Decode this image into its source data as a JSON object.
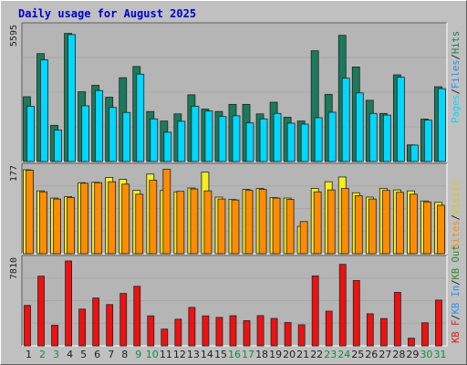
{
  "title": "Daily usage for August 2025",
  "colors": {
    "background": "#c0c0c0",
    "plot_background": "#b5b5b5",
    "hits": "#1a7a5c",
    "files": "#00d8ff",
    "pages": "#00d8ff",
    "visits": "#f4f020",
    "sites": "#ff8c00",
    "kb_out": "#2e8b2e",
    "kb_in": "#1e90ff",
    "kb_f": "#ee1111",
    "title": "#0000cc",
    "weekend_label": "#138a3f"
  },
  "chart_data": [
    {
      "type": "bar",
      "panel": "top",
      "y_max_label": "5595",
      "categories": [
        "1",
        "2",
        "3",
        "4",
        "5",
        "6",
        "7",
        "8",
        "9",
        "10",
        "11",
        "12",
        "13",
        "14",
        "15",
        "16",
        "17",
        "18",
        "19",
        "20",
        "21",
        "22",
        "23",
        "24",
        "25",
        "26",
        "27",
        "28",
        "29",
        "30",
        "31"
      ],
      "weekend_days": [
        "2",
        "3",
        "9",
        "10",
        "16",
        "17",
        "23",
        "24",
        "30",
        "31"
      ],
      "ylim": [
        0,
        5595
      ],
      "series": [
        {
          "name": "Hits",
          "values": [
            2720,
            4530,
            1520,
            5380,
            2930,
            3200,
            2700,
            3520,
            3990,
            2100,
            1700,
            2000,
            2800,
            2200,
            2100,
            2400,
            2400,
            2000,
            2490,
            1860,
            1700,
            4650,
            2820,
            5300,
            3970,
            2570,
            2020,
            3640,
            700,
            1780,
            3140
          ]
        },
        {
          "name": "Files",
          "values": [
            2320,
            4270,
            1320,
            5330,
            2340,
            2980,
            2270,
            2060,
            3670,
            1790,
            1230,
            1690,
            2320,
            2120,
            1890,
            1920,
            1620,
            1790,
            2020,
            1610,
            1570,
            1840,
            2070,
            3500,
            2880,
            2020,
            1950,
            3540,
            690,
            1740,
            3060
          ]
        },
        {
          "name": "Pages",
          "values": [
            2320,
            4270,
            1320,
            5330,
            2340,
            2980,
            2270,
            2060,
            3670,
            1790,
            1230,
            1690,
            2320,
            2120,
            1890,
            1920,
            1620,
            1790,
            2020,
            1610,
            1570,
            1840,
            2070,
            3500,
            2880,
            2020,
            1950,
            3540,
            690,
            1740,
            3060
          ]
        }
      ]
    },
    {
      "type": "bar",
      "panel": "middle",
      "y_max_label": "177",
      "categories": [
        "1",
        "2",
        "3",
        "4",
        "5",
        "6",
        "7",
        "8",
        "9",
        "10",
        "11",
        "12",
        "13",
        "14",
        "15",
        "16",
        "17",
        "18",
        "19",
        "20",
        "21",
        "22",
        "23",
        "24",
        "25",
        "26",
        "27",
        "28",
        "29",
        "30",
        "31"
      ],
      "ylim": [
        0,
        177
      ],
      "series": [
        {
          "name": "Visits",
          "values": [
            175,
            131,
            116,
            119,
            148,
            149,
            159,
            155,
            132,
            166,
            132,
            129,
            137,
            170,
            118,
            113,
            134,
            136,
            117,
            116,
            57,
            136,
            150,
            160,
            127,
            118,
            136,
            133,
            131,
            110,
            107
          ]
        },
        {
          "name": "Sites",
          "values": [
            174,
            129,
            114,
            117,
            147,
            148,
            150,
            145,
            124,
            153,
            176,
            130,
            135,
            131,
            114,
            112,
            132,
            134,
            116,
            113,
            67,
            129,
            133,
            136,
            121,
            114,
            132,
            128,
            124,
            108,
            101
          ]
        }
      ]
    },
    {
      "type": "bar",
      "panel": "bottom",
      "y_max_label": "7810",
      "categories": [
        "1",
        "2",
        "3",
        "4",
        "5",
        "6",
        "7",
        "8",
        "9",
        "10",
        "11",
        "12",
        "13",
        "14",
        "15",
        "16",
        "17",
        "18",
        "19",
        "20",
        "21",
        "22",
        "23",
        "24",
        "25",
        "26",
        "27",
        "28",
        "29",
        "30",
        "31"
      ],
      "ylim": [
        0,
        7810
      ],
      "series": [
        {
          "name": "KB F",
          "values": [
            3720,
            6410,
            1900,
            7810,
            3380,
            4400,
            3800,
            4820,
            5480,
            2760,
            1540,
            2450,
            3540,
            2760,
            2620,
            2770,
            2320,
            2780,
            2520,
            2140,
            1940,
            6440,
            3190,
            7500,
            6010,
            2950,
            2510,
            4920,
            700,
            2120,
            4210
          ]
        }
      ]
    }
  ],
  "legend_right": {
    "top": [
      {
        "label": "Pages",
        "color": "#00d8ff"
      },
      {
        "label": "/",
        "color": "#202020"
      },
      {
        "label": "Files",
        "color": "#1e90ff"
      },
      {
        "label": "/",
        "color": "#202020"
      },
      {
        "label": "Hits",
        "color": "#1a7a5c"
      }
    ],
    "middle": [
      {
        "label": "Sites",
        "color": "#ff8c00"
      },
      {
        "label": "/",
        "color": "#202020"
      },
      {
        "label": "Visits",
        "color": "#d8c810"
      }
    ],
    "bottom": [
      {
        "label": "KB F",
        "color": "#ee1111"
      },
      {
        "label": "/",
        "color": "#202020"
      },
      {
        "label": "KB In",
        "color": "#1e90ff"
      },
      {
        "label": "/",
        "color": "#202020"
      },
      {
        "label": "KB Out",
        "color": "#2e8b2e"
      }
    ]
  }
}
